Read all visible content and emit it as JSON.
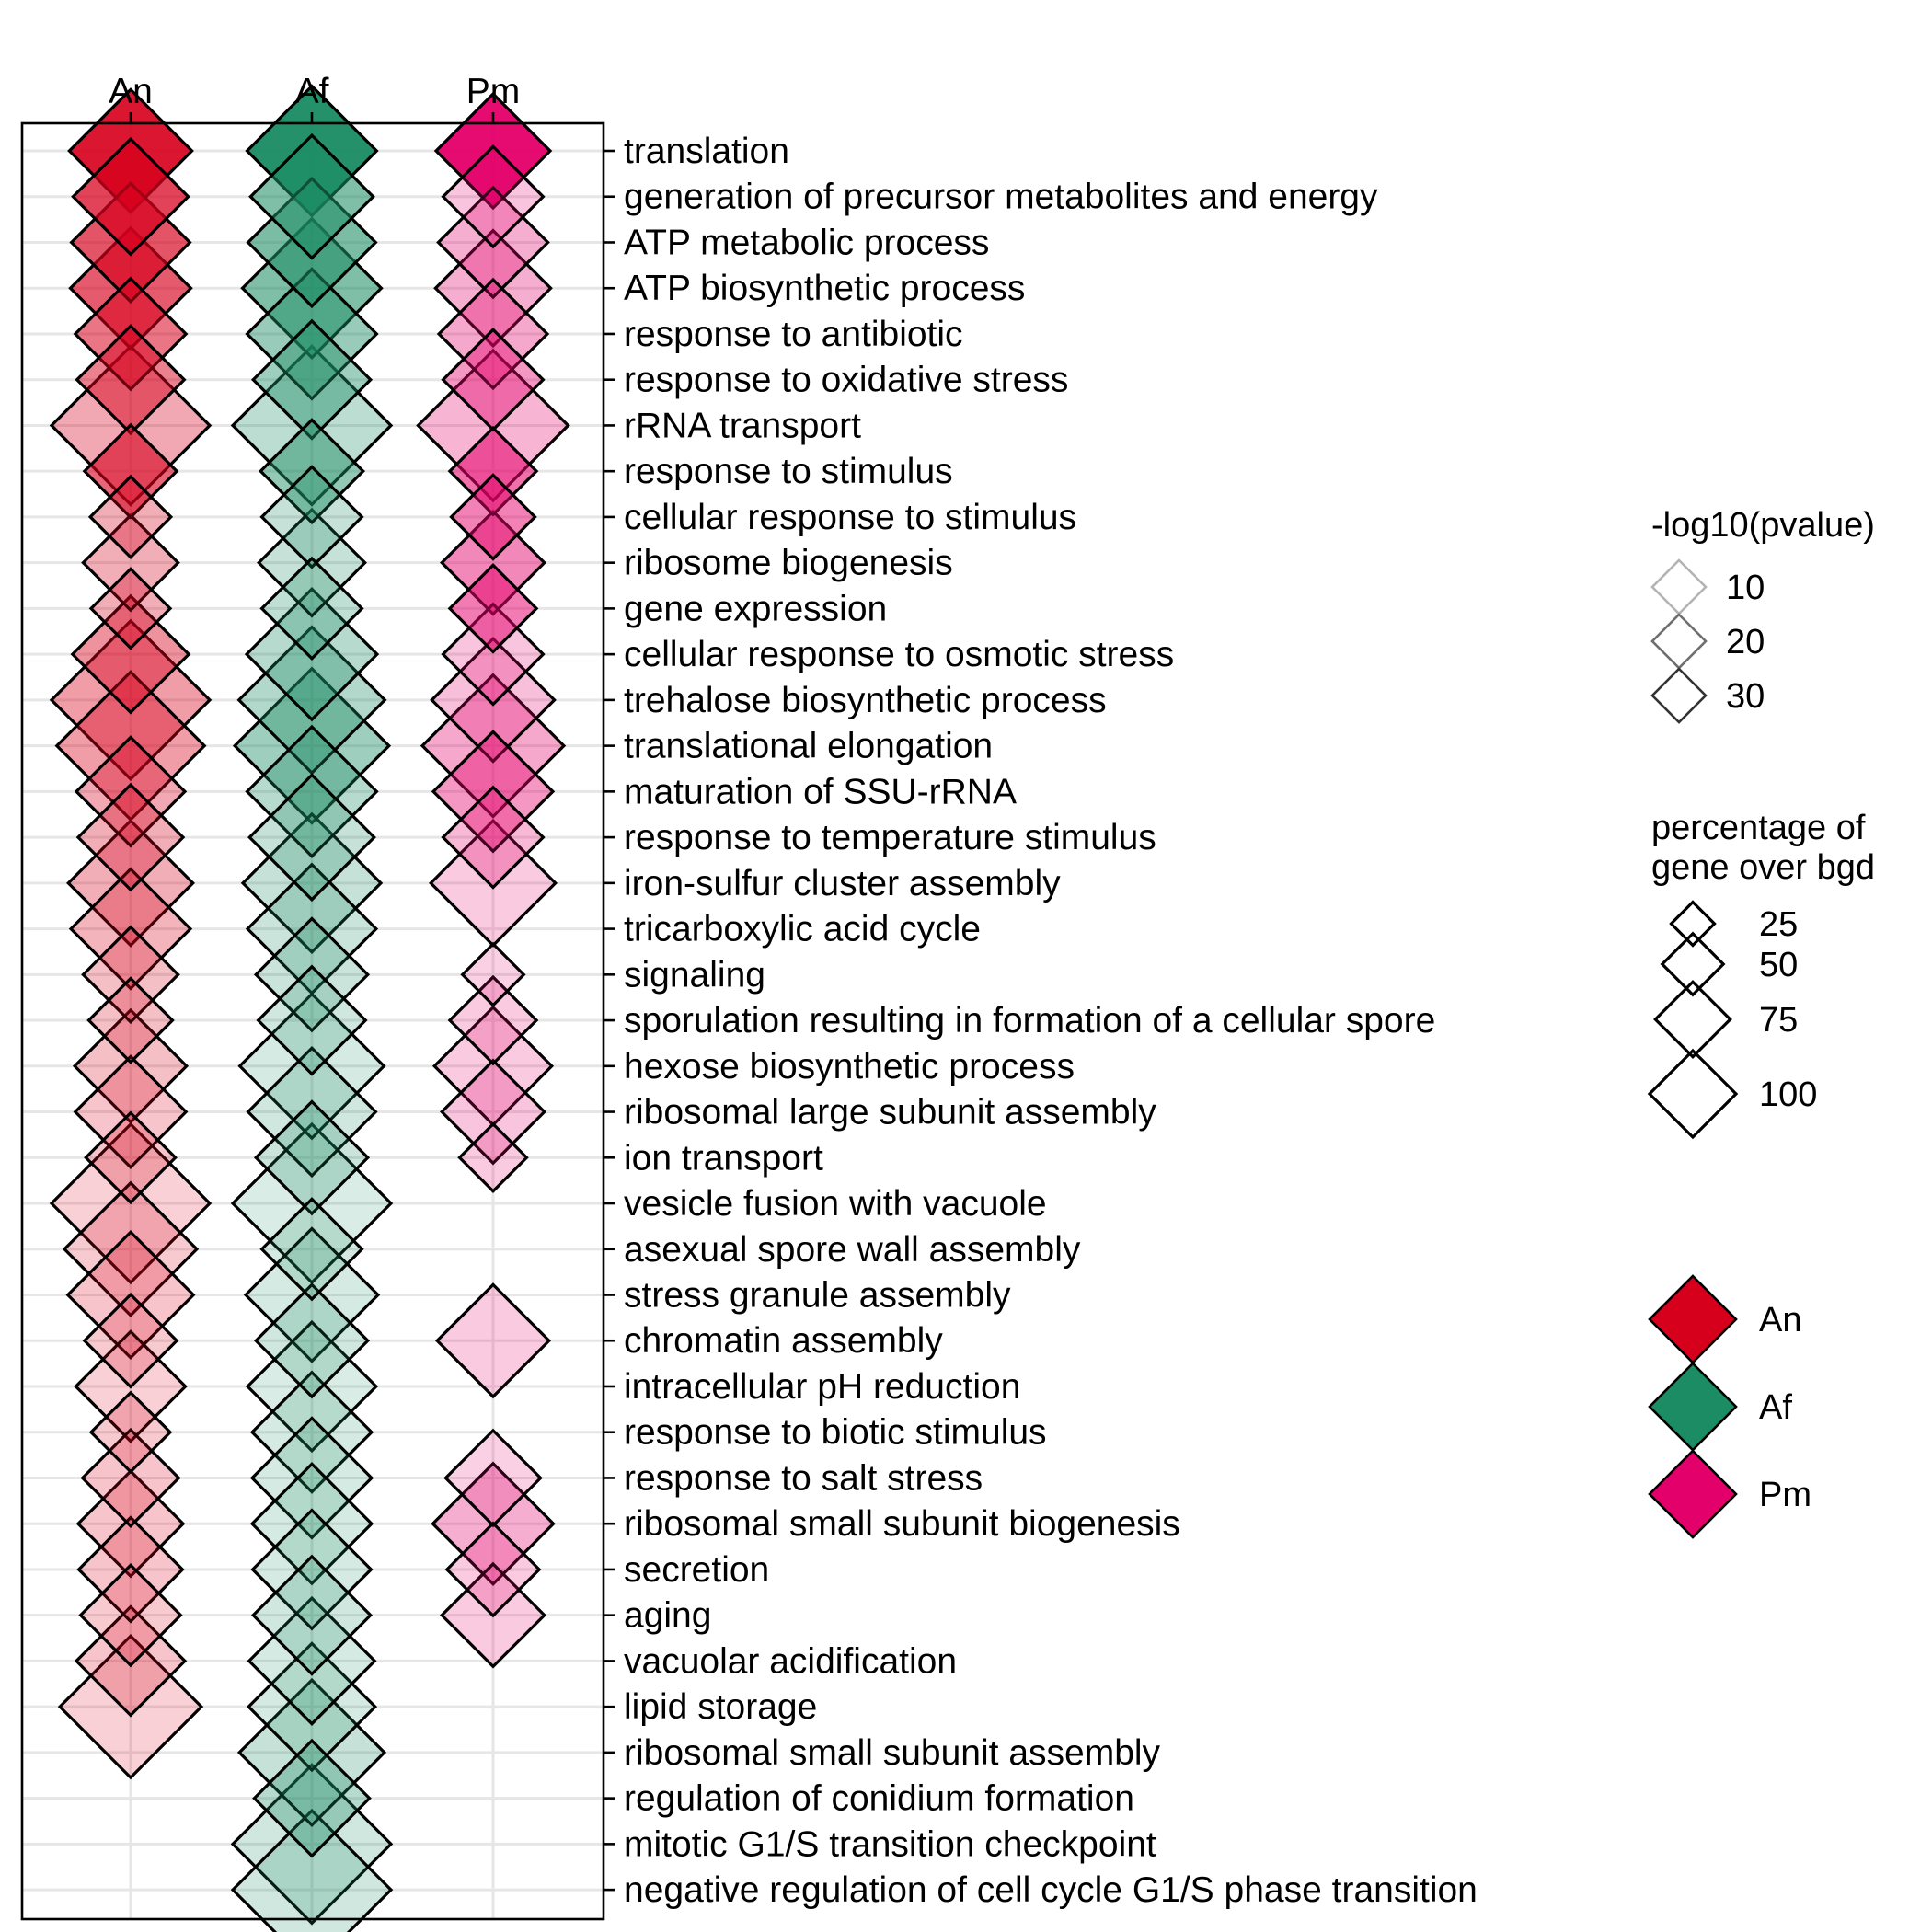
{
  "chart_data": {
    "type": "scatter",
    "shape": "diamond",
    "columns": [
      "An",
      "Af",
      "Pm"
    ],
    "colors": {
      "An": "#d7001c",
      "Af": "#1b8c64",
      "Pm": "#e4006a"
    },
    "terms": [
      "translation",
      "generation of precursor metabolites and energy",
      "ATP metabolic process",
      "ATP biosynthetic process",
      "response to antibiotic",
      "response to oxidative stress",
      "rRNA transport",
      "response to stimulus",
      "cellular response to stimulus",
      "ribosome biogenesis",
      "gene expression",
      "cellular response to osmotic stress",
      "trehalose biosynthetic process",
      "translational elongation",
      "maturation of SSU-rRNA",
      "response to temperature stimulus",
      "iron-sulfur cluster assembly",
      "tricarboxylic acid cycle",
      "signaling",
      "sporulation resulting in formation of a cellular spore",
      "hexose biosynthetic process",
      "ribosomal large subunit assembly",
      "ion transport",
      "vesicle fusion with vacuole",
      "asexual spore wall assembly",
      "stress granule assembly",
      "chromatin assembly",
      "intracellular pH reduction",
      "response to biotic stimulus",
      "response to salt stress",
      "ribosomal small subunit biogenesis",
      "secretion",
      "aging",
      "vacuolar acidification",
      "lipid storage",
      "ribosomal small subunit assembly",
      "regulation of conidium formation",
      "mitotic G1/S transition checkpoint",
      "negative regulation of cell cycle G1/S phase transition"
    ],
    "points": [
      {
        "species": "An",
        "term": "translation",
        "neglog10p": 36,
        "pct": 60
      },
      {
        "species": "An",
        "term": "generation of precursor metabolites and energy",
        "neglog10p": 28,
        "pct": 53
      },
      {
        "species": "An",
        "term": "ATP metabolic process",
        "neglog10p": 25,
        "pct": 56
      },
      {
        "species": "An",
        "term": "ATP biosynthetic process",
        "neglog10p": 24,
        "pct": 58
      },
      {
        "species": "An",
        "term": "response to antibiotic",
        "neglog10p": 19,
        "pct": 49
      },
      {
        "species": "An",
        "term": "response to oxidative stress",
        "neglog10p": 17,
        "pct": 46
      },
      {
        "species": "An",
        "term": "rRNA transport",
        "neglog10p": 10,
        "pct": 100
      },
      {
        "species": "An",
        "term": "response to stimulus",
        "neglog10p": 22,
        "pct": 34
      },
      {
        "species": "An",
        "term": "cellular response to stimulus",
        "neglog10p": 9,
        "pct": 26
      },
      {
        "species": "An",
        "term": "ribosome biogenesis",
        "neglog10p": 9,
        "pct": 36
      },
      {
        "species": "An",
        "term": "gene expression",
        "neglog10p": 9,
        "pct": 25
      },
      {
        "species": "An",
        "term": "cellular response to osmotic stress",
        "neglog10p": 14,
        "pct": 54
      },
      {
        "species": "An",
        "term": "trehalose biosynthetic process",
        "neglog10p": 12,
        "pct": 100
      },
      {
        "species": "An",
        "term": "translational elongation",
        "neglog10p": 12,
        "pct": 87
      },
      {
        "species": "An",
        "term": "maturation of SSU-rRNA",
        "neglog10p": 10,
        "pct": 47
      },
      {
        "species": "An",
        "term": "response to temperature stimulus",
        "neglog10p": 9,
        "pct": 44
      },
      {
        "species": "An",
        "term": "iron-sulfur cluster assembly",
        "neglog10p": 9,
        "pct": 62
      },
      {
        "species": "An",
        "term": "tricarboxylic acid cycle",
        "neglog10p": 8,
        "pct": 57
      },
      {
        "species": "An",
        "term": "signaling",
        "neglog10p": 6,
        "pct": 36
      },
      {
        "species": "An",
        "term": "sporulation resulting in formation of a cellular spore",
        "neglog10p": 6,
        "pct": 28
      },
      {
        "species": "An",
        "term": "hexose biosynthetic process",
        "neglog10p": 6,
        "pct": 50
      },
      {
        "species": "An",
        "term": "ribosomal large subunit assembly",
        "neglog10p": 5,
        "pct": 49
      },
      {
        "species": "An",
        "term": "ion transport",
        "neglog10p": 5,
        "pct": 32
      },
      {
        "species": "An",
        "term": "vesicle fusion with vacuole",
        "neglog10p": 3,
        "pct": 100
      },
      {
        "species": "An",
        "term": "asexual spore wall assembly",
        "neglog10p": 4,
        "pct": 70
      },
      {
        "species": "An",
        "term": "stress granule assembly",
        "neglog10p": 5,
        "pct": 63
      },
      {
        "species": "An",
        "term": "chromatin assembly",
        "neglog10p": 4,
        "pct": 34
      },
      {
        "species": "An",
        "term": "intracellular pH reduction",
        "neglog10p": 3,
        "pct": 48
      },
      {
        "species": "An",
        "term": "response to biotic stimulus",
        "neglog10p": 4,
        "pct": 25
      },
      {
        "species": "An",
        "term": "response to salt stress",
        "neglog10p": 5,
        "pct": 37
      },
      {
        "species": "An",
        "term": "ribosomal small subunit biogenesis",
        "neglog10p": 5,
        "pct": 44
      },
      {
        "species": "An",
        "term": "secretion",
        "neglog10p": 5,
        "pct": 43
      },
      {
        "species": "An",
        "term": "aging",
        "neglog10p": 4,
        "pct": 40
      },
      {
        "species": "An",
        "term": "vacuolar acidification",
        "neglog10p": 5,
        "pct": 47
      },
      {
        "species": "An",
        "term": "lipid storage",
        "neglog10p": 3,
        "pct": 80
      },
      {
        "species": "Af",
        "term": "translation",
        "neglog10p": 38,
        "pct": 67
      },
      {
        "species": "Af",
        "term": "generation of precursor metabolites and energy",
        "neglog10p": 20,
        "pct": 60
      },
      {
        "species": "Af",
        "term": "ATP metabolic process",
        "neglog10p": 21,
        "pct": 65
      },
      {
        "species": "Af",
        "term": "ATP biosynthetic process",
        "neglog10p": 20,
        "pct": 77
      },
      {
        "species": "Af",
        "term": "response to antibiotic",
        "neglog10p": 15,
        "pct": 67
      },
      {
        "species": "Af",
        "term": "response to oxidative stress",
        "neglog10p": 14,
        "pct": 55
      },
      {
        "species": "Af",
        "term": "rRNA transport",
        "neglog10p": 8,
        "pct": 100
      },
      {
        "species": "Af",
        "term": "response to stimulus",
        "neglog10p": 16,
        "pct": 42
      },
      {
        "species": "Af",
        "term": "cellular response to stimulus",
        "neglog10p": 6,
        "pct": 40
      },
      {
        "species": "Af",
        "term": "ribosome biogenesis",
        "neglog10p": 6,
        "pct": 45
      },
      {
        "species": "Af",
        "term": "gene expression",
        "neglog10p": 7,
        "pct": 40
      },
      {
        "species": "Af",
        "term": "cellular response to osmotic stress",
        "neglog10p": 9,
        "pct": 68
      },
      {
        "species": "Af",
        "term": "trehalose biosynthetic process",
        "neglog10p": 10,
        "pct": 85
      },
      {
        "species": "Af",
        "term": "translational elongation",
        "neglog10p": 14,
        "pct": 95
      },
      {
        "species": "Af",
        "term": "maturation of SSU-rRNA",
        "neglog10p": 9,
        "pct": 67
      },
      {
        "species": "Af",
        "term": "response to temperature stimulus",
        "neglog10p": 6,
        "pct": 62
      },
      {
        "species": "Af",
        "term": "iron-sulfur cluster assembly",
        "neglog10p": 6,
        "pct": 76
      },
      {
        "species": "Af",
        "term": "tricarboxylic acid cycle",
        "neglog10p": 5,
        "pct": 66
      },
      {
        "species": "Af",
        "term": "signaling",
        "neglog10p": 5,
        "pct": 50
      },
      {
        "species": "Af",
        "term": "sporulation resulting in formation of a cellular spore",
        "neglog10p": 4,
        "pct": 46
      },
      {
        "species": "Af",
        "term": "hexose biosynthetic process",
        "neglog10p": 3,
        "pct": 83
      },
      {
        "species": "Af",
        "term": "ribosomal large subunit assembly",
        "neglog10p": 4,
        "pct": 65
      },
      {
        "species": "Af",
        "term": "ion transport",
        "neglog10p": 5,
        "pct": 50
      },
      {
        "species": "Af",
        "term": "vesicle fusion with vacuole",
        "neglog10p": 2,
        "pct": 100
      },
      {
        "species": "Af",
        "term": "asexual spore wall assembly",
        "neglog10p": 3,
        "pct": 40
      },
      {
        "species": "Af",
        "term": "stress granule assembly",
        "neglog10p": 3,
        "pct": 70
      },
      {
        "species": "Af",
        "term": "chromatin assembly",
        "neglog10p": 4,
        "pct": 50
      },
      {
        "species": "Af",
        "term": "intracellular pH reduction",
        "neglog10p": 2,
        "pct": 66
      },
      {
        "species": "Af",
        "term": "response to biotic stimulus",
        "neglog10p": 3,
        "pct": 57
      },
      {
        "species": "Af",
        "term": "response to salt stress",
        "neglog10p": 3,
        "pct": 57
      },
      {
        "species": "Af",
        "term": "ribosomal small subunit biogenesis",
        "neglog10p": 3,
        "pct": 57
      },
      {
        "species": "Af",
        "term": "secretion",
        "neglog10p": 3,
        "pct": 56
      },
      {
        "species": "Af",
        "term": "aging",
        "neglog10p": 4,
        "pct": 55
      },
      {
        "species": "Af",
        "term": "vacuolar acidification",
        "neglog10p": 3,
        "pct": 63
      },
      {
        "species": "Af",
        "term": "lipid storage",
        "neglog10p": 3,
        "pct": 64
      },
      {
        "species": "Af",
        "term": "ribosomal small subunit assembly",
        "neglog10p": 6,
        "pct": 84
      },
      {
        "species": "Af",
        "term": "regulation of conidium formation",
        "neglog10p": 9,
        "pct": 53
      },
      {
        "species": "Af",
        "term": "mitotic G1/S transition checkpoint",
        "neglog10p": 4,
        "pct": 100
      },
      {
        "species": "Af",
        "term": "negative regulation of cell cycle G1/S phase transition",
        "neglog10p": 4,
        "pct": 100
      },
      {
        "species": "Pm",
        "term": "translation",
        "neglog10p": 38,
        "pct": 52
      },
      {
        "species": "Pm",
        "term": "generation of precursor metabolites and energy",
        "neglog10p": 5,
        "pct": 40
      },
      {
        "species": "Pm",
        "term": "ATP metabolic process",
        "neglog10p": 9,
        "pct": 48
      },
      {
        "species": "Pm",
        "term": "ATP biosynthetic process",
        "neglog10p": 9,
        "pct": 53
      },
      {
        "species": "Pm",
        "term": "response to antibiotic",
        "neglog10p": 10,
        "pct": 47
      },
      {
        "species": "Pm",
        "term": "response to oxidative stress",
        "neglog10p": 13,
        "pct": 40
      },
      {
        "species": "Pm",
        "term": "rRNA transport",
        "neglog10p": 8,
        "pct": 90
      },
      {
        "species": "Pm",
        "term": "response to stimulus",
        "neglog10p": 20,
        "pct": 30
      },
      {
        "species": "Pm",
        "term": "cellular response to stimulus",
        "neglog10p": 17,
        "pct": 28
      },
      {
        "species": "Pm",
        "term": "ribosome biogenesis",
        "neglog10p": 16,
        "pct": 42
      },
      {
        "species": "Pm",
        "term": "gene expression",
        "neglog10p": 18,
        "pct": 30
      },
      {
        "species": "Pm",
        "term": "cellular response to osmotic stress",
        "neglog10p": 5,
        "pct": 40
      },
      {
        "species": "Pm",
        "term": "trehalose biosynthetic process",
        "neglog10p": 6,
        "pct": 60
      },
      {
        "species": "Pm",
        "term": "translational elongation",
        "neglog10p": 10,
        "pct": 80
      },
      {
        "species": "Pm",
        "term": "maturation of SSU-rRNA",
        "neglog10p": 13,
        "pct": 57
      },
      {
        "species": "Pm",
        "term": "response to temperature stimulus",
        "neglog10p": 7,
        "pct": 40
      },
      {
        "species": "Pm",
        "term": "iron-sulfur cluster assembly",
        "neglog10p": 4,
        "pct": 62
      },
      {
        "species": "Pm",
        "term": "signaling",
        "neglog10p": 3,
        "pct": 15
      },
      {
        "species": "Pm",
        "term": "sporulation resulting in formation of a cellular spore",
        "neglog10p": 4,
        "pct": 30
      },
      {
        "species": "Pm",
        "term": "hexose biosynthetic process",
        "neglog10p": 4,
        "pct": 55
      },
      {
        "species": "Pm",
        "term": "ribosomal large subunit assembly",
        "neglog10p": 5,
        "pct": 42
      },
      {
        "species": "Pm",
        "term": "ion transport",
        "neglog10p": 4,
        "pct": 18
      },
      {
        "species": "Pm",
        "term": "chromatin assembly",
        "neglog10p": 4,
        "pct": 50
      },
      {
        "species": "Pm",
        "term": "response to salt stress",
        "neglog10p": 3,
        "pct": 36
      },
      {
        "species": "Pm",
        "term": "ribosomal small subunit biogenesis",
        "neglog10p": 9,
        "pct": 58
      },
      {
        "species": "Pm",
        "term": "secretion",
        "neglog10p": 4,
        "pct": 34
      },
      {
        "species": "Pm",
        "term": "aging",
        "neglog10p": 4,
        "pct": 42
      }
    ]
  },
  "legend_alpha": {
    "title": "-log10(pvalue)",
    "entries": [
      {
        "label": "10",
        "value": 10
      },
      {
        "label": "20",
        "value": 20
      },
      {
        "label": "30",
        "value": 30
      }
    ]
  },
  "legend_size": {
    "title_line1": "percentage of",
    "title_line2": "gene over bgd",
    "entries": [
      {
        "label": "25",
        "value": 25
      },
      {
        "label": "50",
        "value": 50
      },
      {
        "label": "75",
        "value": 75
      },
      {
        "label": "100",
        "value": 100
      }
    ]
  },
  "legend_color": {
    "entries": [
      {
        "label": "An",
        "color": "#d7001c"
      },
      {
        "label": "Af",
        "color": "#1b8c64"
      },
      {
        "label": "Pm",
        "color": "#e4006a"
      }
    ]
  }
}
